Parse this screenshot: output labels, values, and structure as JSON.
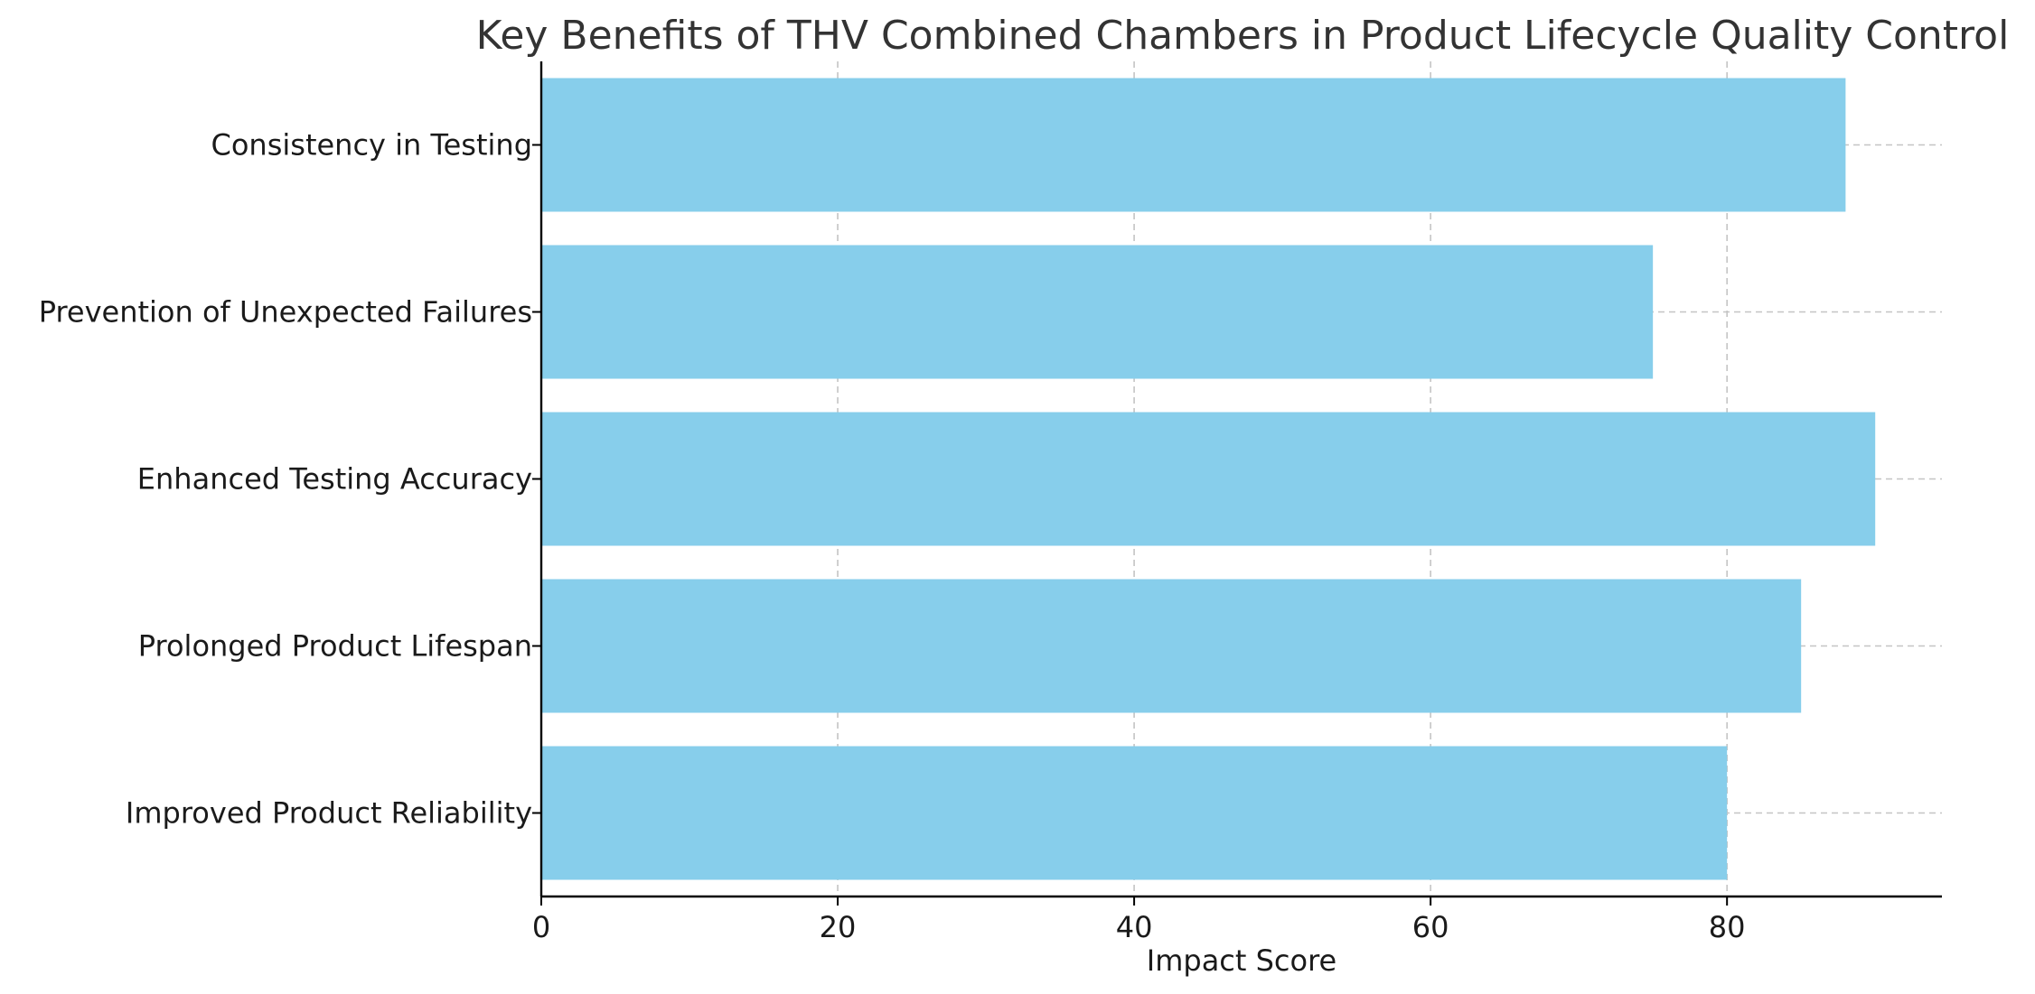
{
  "chart_data": {
    "type": "bar",
    "orientation": "horizontal",
    "title": "Key Benefits of THV Combined Chambers in Product Lifecycle Quality Control",
    "xlabel": "Impact Score",
    "ylabel": "",
    "categories": [
      "Improved Product Reliability",
      "Prolonged Product Lifespan",
      "Enhanced Testing Accuracy",
      "Prevention of Unexpected Failures",
      "Consistency in Testing"
    ],
    "values": [
      80,
      85,
      90,
      75,
      88
    ],
    "xlim": [
      0,
      94.5
    ],
    "xticks": [
      0,
      20,
      40,
      60,
      80
    ],
    "xtick_labels": [
      "0",
      "20",
      "40",
      "60",
      "80"
    ],
    "grid": true,
    "bar_color": "#87CEEB"
  }
}
